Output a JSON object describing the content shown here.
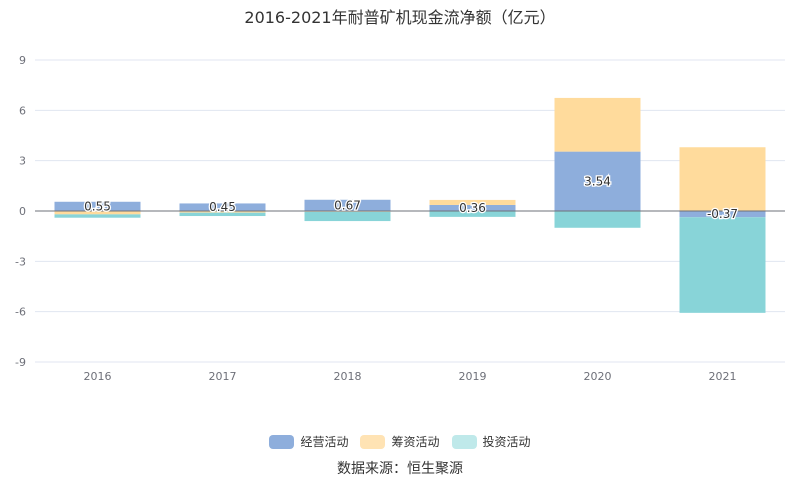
{
  "chart_data": {
    "type": "bar",
    "stacked": true,
    "title": "2016-2021年耐普矿机现金流净额（亿元）",
    "categories": [
      "2016",
      "2017",
      "2018",
      "2019",
      "2020",
      "2021"
    ],
    "ylim": [
      -9,
      9
    ],
    "yticks": [
      9,
      6,
      3,
      0,
      -3,
      -6,
      -9
    ],
    "grid": true,
    "legend_position": "bottom",
    "series": [
      {
        "name": "经营活动",
        "color": "#8eaedc",
        "values": [
          0.55,
          0.45,
          0.67,
          0.36,
          3.54,
          -0.37
        ]
      },
      {
        "name": "筹资活动",
        "color": "#ffdb9c",
        "values": [
          -0.2,
          -0.1,
          -0.05,
          0.3,
          3.2,
          3.8
        ]
      },
      {
        "name": "投资活动",
        "color": "#88d4d8",
        "values": [
          -0.2,
          -0.2,
          -0.55,
          -0.35,
          -1.0,
          -5.7
        ]
      }
    ],
    "data_labels": [
      "0.55",
      "0.45",
      "0.67",
      "0.36",
      "3.54",
      "-0.37"
    ]
  },
  "legend": [
    {
      "label": "经营活动",
      "color": "#8eaedc"
    },
    {
      "label": "筹资活动",
      "color": "#ffe3b4"
    },
    {
      "label": "投资活动",
      "color": "#bfe9ea"
    }
  ],
  "source": "数据来源：恒生聚源"
}
